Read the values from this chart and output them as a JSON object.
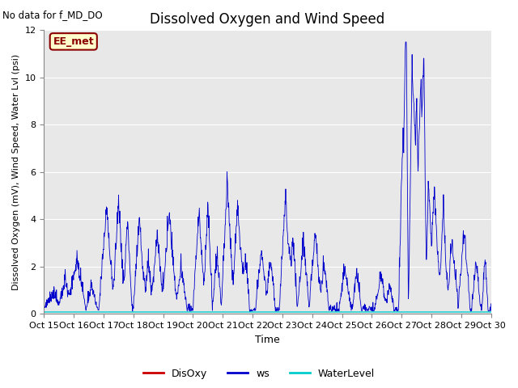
{
  "title": "Dissolved Oxygen and Wind Speed",
  "ylabel": "Dissolved Oxygen (mV), Wind Speed, Water Lvl (psi)",
  "xlabel": "Time",
  "no_data_text": "No data for f_MD_DO",
  "station_label": "EE_met",
  "ylim": [
    0,
    12
  ],
  "yticks": [
    0,
    2,
    4,
    6,
    8,
    10,
    12
  ],
  "x_tick_labels": [
    "Oct 15",
    "Oct 16",
    "Oct 17",
    "Oct 18",
    "Oct 19",
    "Oct 20",
    "Oct 21",
    "Oct 22",
    "Oct 23",
    "Oct 24",
    "Oct 25",
    "Oct 26",
    "Oct 27",
    "Oct 28",
    "Oct 29",
    "Oct 30"
  ],
  "bg_color": "#e8e8e8",
  "ws_color": "#0000cc",
  "disoxy_color": "#cc0000",
  "waterlevel_color": "#00cccc",
  "legend_labels": [
    "DisOxy",
    "ws",
    "WaterLevel"
  ],
  "legend_colors": [
    "#cc0000",
    "#0000cc",
    "#00cccc"
  ],
  "ws_seed": 1234,
  "n_days": 15,
  "pts_per_day": 96
}
